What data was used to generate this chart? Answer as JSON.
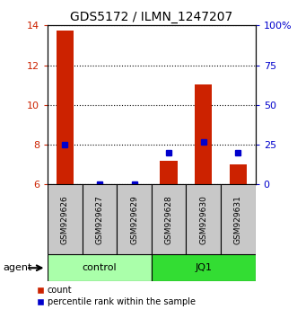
{
  "title": "GDS5172 / ILMN_1247207",
  "samples": [
    "GSM929626",
    "GSM929627",
    "GSM929629",
    "GSM929628",
    "GSM929630",
    "GSM929631"
  ],
  "count_values": [
    13.75,
    6.0,
    6.0,
    7.2,
    11.05,
    7.0
  ],
  "percentile_values": [
    25.0,
    0.0,
    0.0,
    20.0,
    27.0,
    20.0
  ],
  "ylim_left": [
    6,
    14
  ],
  "ylim_right": [
    0,
    100
  ],
  "yticks_left": [
    6,
    8,
    10,
    12,
    14
  ],
  "yticks_right": [
    0,
    25,
    50,
    75,
    100
  ],
  "ytick_labels_right": [
    "0",
    "25",
    "50",
    "75",
    "100%"
  ],
  "groups": [
    {
      "label": "control",
      "start": 0,
      "end": 3,
      "color": "#AAFFAA"
    },
    {
      "label": "JQ1",
      "start": 3,
      "end": 6,
      "color": "#33DD33"
    }
  ],
  "bar_color": "#CC2200",
  "dot_color": "#0000CC",
  "sample_box_color": "#C8C8C8",
  "agent_label": "agent",
  "legend_count_label": "count",
  "legend_pct_label": "percentile rank within the sample",
  "left_axis_color": "#CC2200",
  "right_axis_color": "#0000CC",
  "title_fontsize": 10,
  "bar_width": 0.5
}
